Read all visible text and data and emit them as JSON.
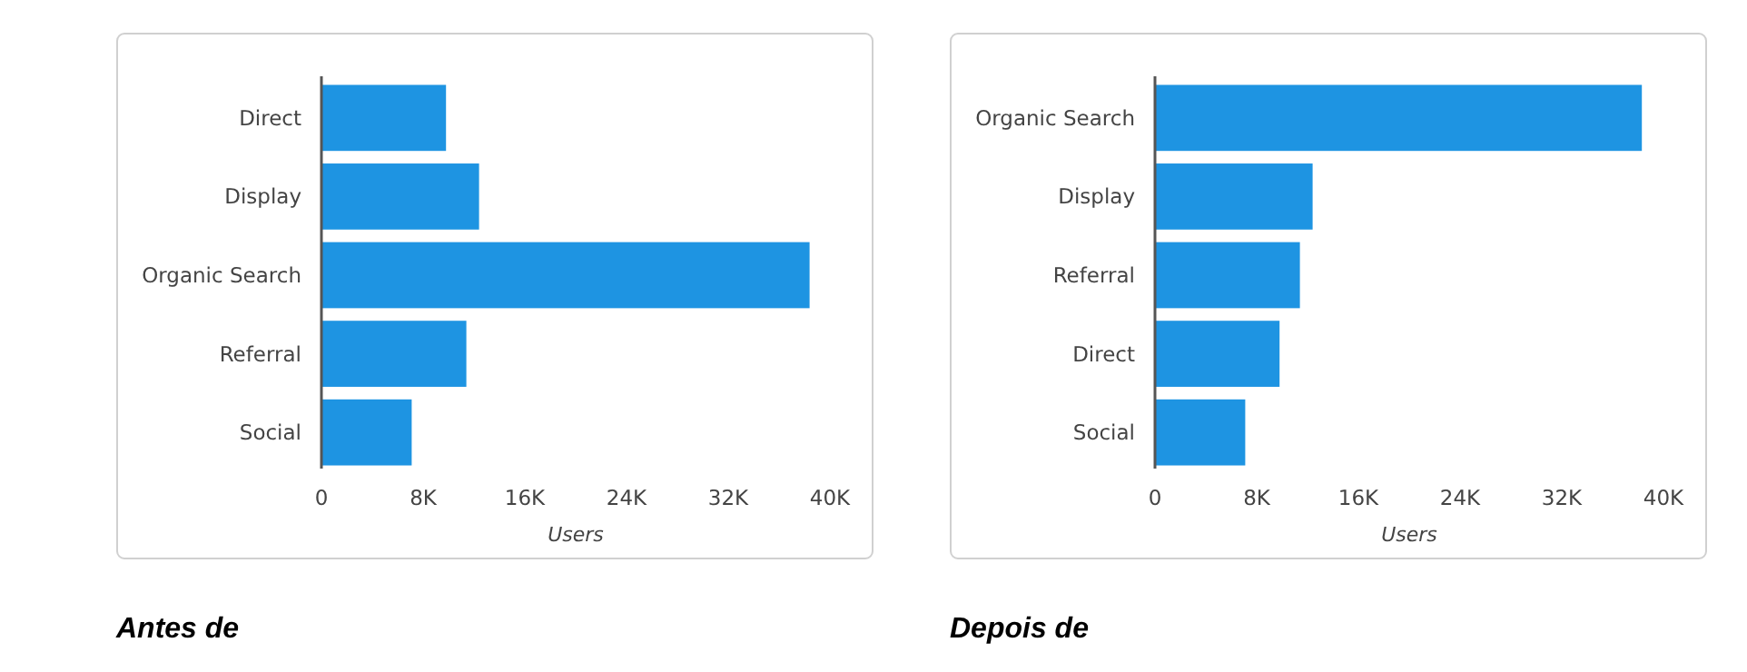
{
  "chart_data": [
    {
      "type": "bar",
      "orientation": "horizontal",
      "title": "Antes de",
      "xlabel": "Users",
      "categories": [
        "Direct",
        "Display",
        "Organic Search",
        "Referral",
        "Social"
      ],
      "values": [
        9.8,
        12.4,
        38.4,
        11.4,
        7.1
      ],
      "color": "#1e94e2",
      "xlim": [
        0,
        40
      ],
      "xticks": [
        0,
        {
          "value": 8,
          "label": "8K"
        },
        {
          "value": 16,
          "label": "16K"
        },
        {
          "value": 24,
          "label": "24K"
        },
        {
          "value": 32,
          "label": "32K"
        },
        {
          "value": 40,
          "label": "40K"
        }
      ]
    },
    {
      "type": "bar",
      "orientation": "horizontal",
      "title": "Depois de",
      "xlabel": "Users",
      "categories": [
        "Organic Search",
        "Display",
        "Referral",
        "Direct",
        "Social"
      ],
      "values": [
        38.3,
        12.4,
        11.4,
        9.8,
        7.1
      ],
      "color": "#1e94e2",
      "xlim": [
        0,
        40
      ],
      "xticks": [
        0,
        {
          "value": 8,
          "label": "8K"
        },
        {
          "value": 16,
          "label": "16K"
        },
        {
          "value": 24,
          "label": "24K"
        },
        {
          "value": 32,
          "label": "32K"
        },
        {
          "value": 40,
          "label": "40K"
        }
      ]
    }
  ]
}
